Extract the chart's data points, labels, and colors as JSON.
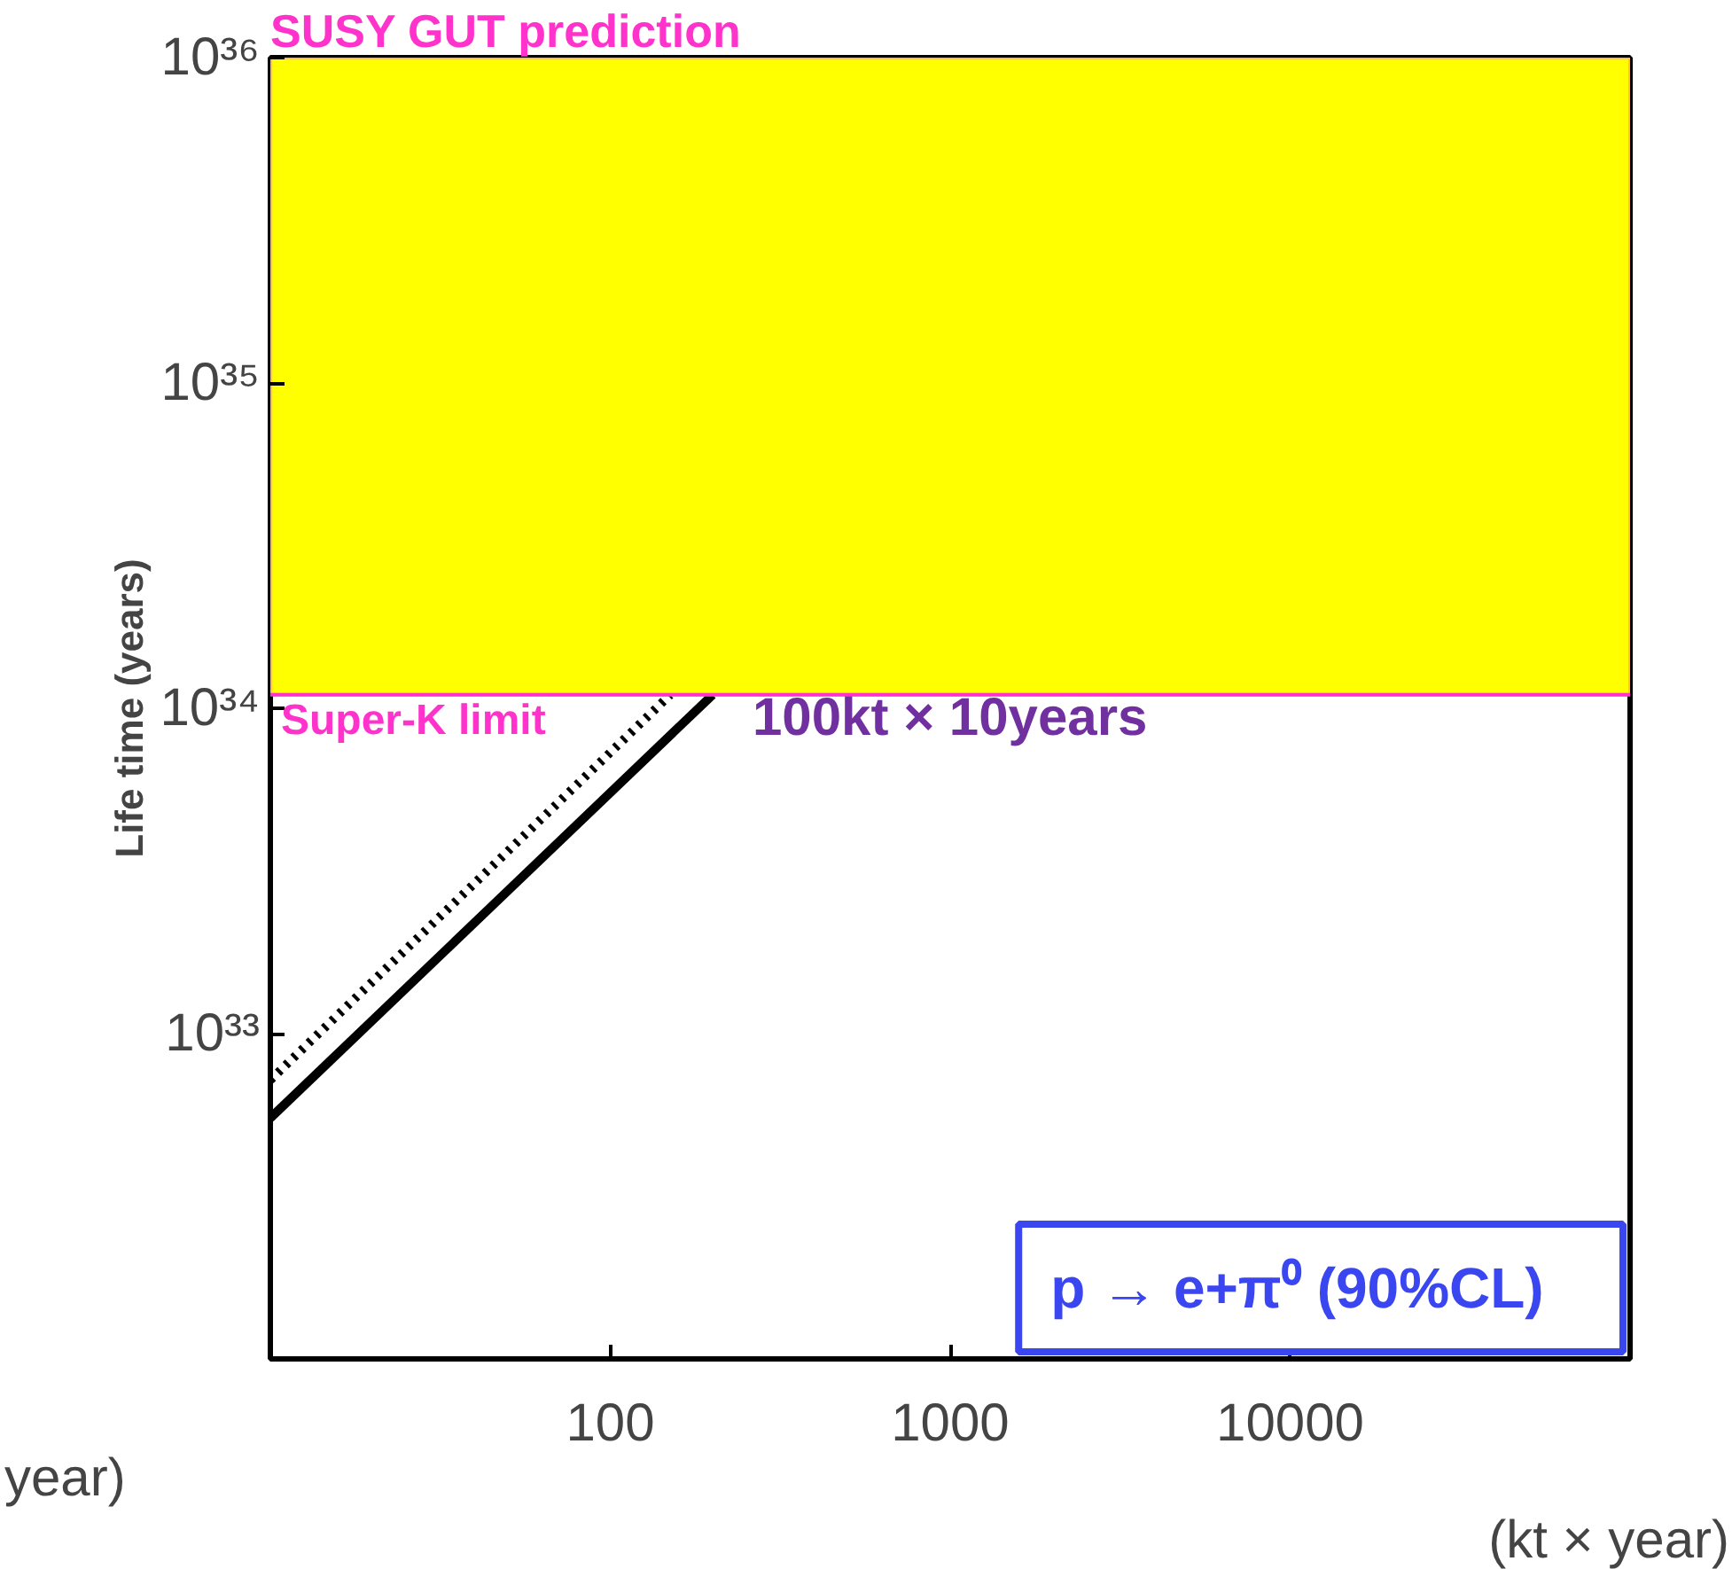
{
  "chart_data": {
    "type": "line",
    "xlabel": "(kt × year)",
    "ylabel": "Life time (years)",
    "log": "xy",
    "xlim": [
      10,
      100000
    ],
    "ylim": [
      1e+32,
      1e+36
    ],
    "xticks": [
      {
        "value": 10,
        "label": null
      },
      100,
      1000,
      10000,
      {
        "value": 100000,
        "label": null
      }
    ],
    "yticks": [
      {
        "value": 1e+32,
        "label": null
      },
      {
        "value": 1e+33,
        "label": "10³³"
      },
      {
        "value": 1e+34,
        "label": "10³⁴"
      },
      {
        "value": 1e+35,
        "label": "10³⁵"
      },
      {
        "value": 1e+36,
        "label": "10³⁶"
      }
    ],
    "series": [
      {
        "color": "#000000",
        "line_style": "solid",
        "x": [
          10,
          200
        ],
        "values": [
          5.5e+32,
          1.1e+34
        ]
      },
      {
        "color": "#000000",
        "line_style": "dotted",
        "x": [
          10,
          150
        ],
        "values": [
          7.2e+32,
          1.1e+34
        ]
      }
    ],
    "bands": [
      {
        "axis": "y",
        "from": 1.1e+34,
        "to": 1e+36,
        "label": "SUSY   GUT prediction",
        "color": "#ffff00"
      }
    ],
    "ref_lines": [
      {
        "axis": "y",
        "value": 1.1e+34,
        "label": "Super-K limit",
        "color": "#ff33cc"
      }
    ],
    "annotations": [
      "100kt × 10years",
      "p  →  e+π⁰  (90%CL)",
      "year)"
    ],
    "grid": false
  }
}
